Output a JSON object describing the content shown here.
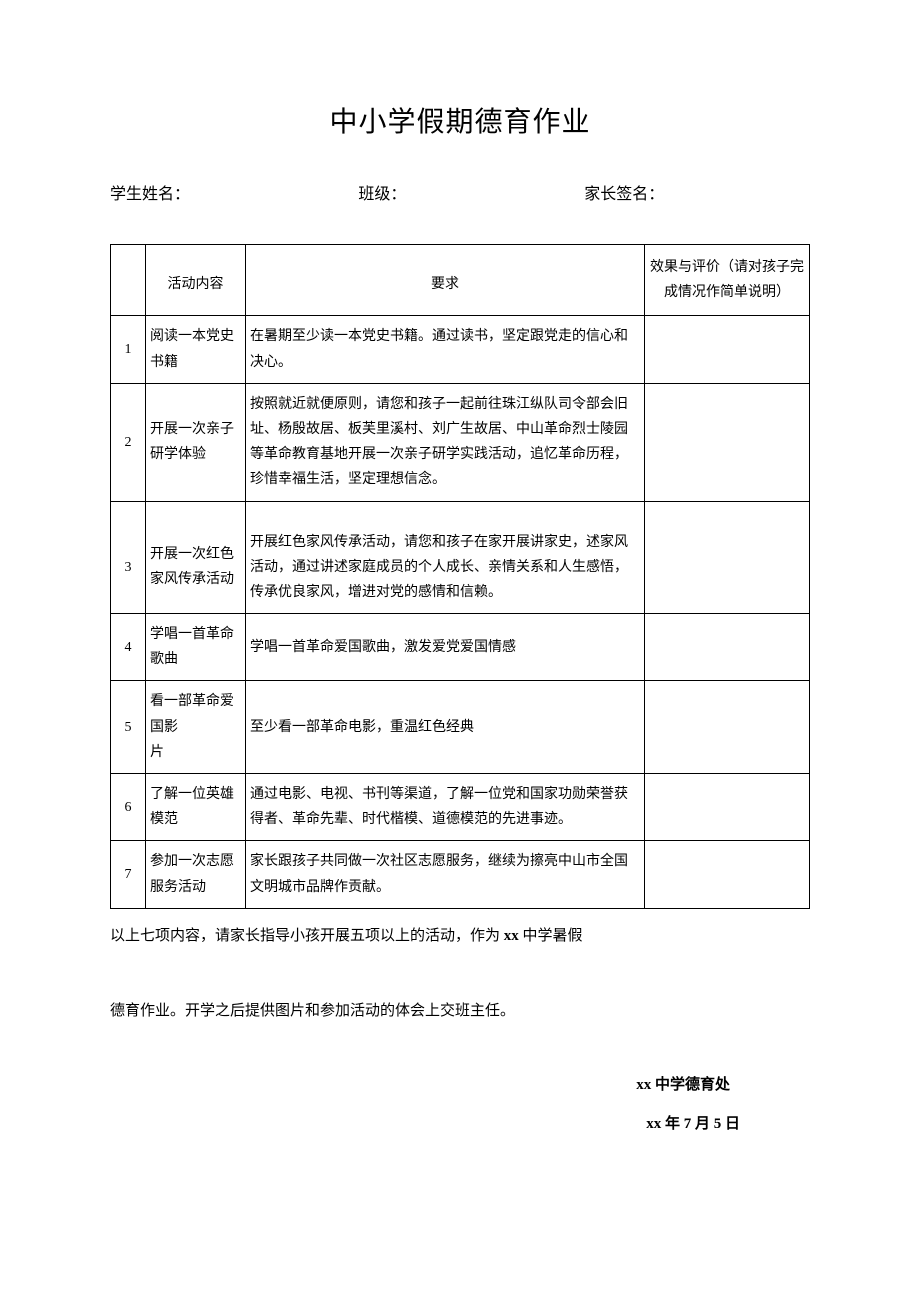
{
  "title": "中小学假期德育作业",
  "info": {
    "student_name_label": "学生姓名：",
    "class_label": "班级：",
    "parent_sign_label": "家长签名："
  },
  "table": {
    "headers": {
      "num": "",
      "activity": "活动内容",
      "requirement": "要求",
      "evaluation": "效果与评价（请对孩子完成情况作简单说明）"
    },
    "rows": [
      {
        "num": "1",
        "activity": "阅读一本党史书籍",
        "requirement": "在暑期至少读一本党史书籍。通过读书，坚定跟党走的信心和决心。",
        "evaluation": ""
      },
      {
        "num": "2",
        "activity": "开展一次亲子研学体验",
        "requirement": "按照就近就便原则，请您和孩子一起前往珠江纵队司令部会旧址、杨殷故居、板芙里溪村、刘广生故居、中山革命烈士陵园等革命教育基地开展一次亲子研学实践活动，追忆革命历程，珍惜幸福生活，坚定理想信念。",
        "evaluation": ""
      },
      {
        "num": "3",
        "activity": "开展一次红色家风传承活动",
        "requirement": "开展红色家风传承活动，请您和孩子在家开展讲家史，述家风活动，通过讲述家庭成员的个人成长、亲情关系和人生感悟，传承优良家风，增进对党的感情和信赖。",
        "evaluation": ""
      },
      {
        "num": "4",
        "activity": "学唱一首革命歌曲",
        "requirement": "学唱一首革命爱国歌曲，激发爱党爱国情感",
        "evaluation": ""
      },
      {
        "num": "5",
        "activity": "看一部革命爱国影\n片",
        "requirement": "至少看一部革命电影，重温红色经典",
        "evaluation": ""
      },
      {
        "num": "6",
        "activity": "了解一位英雄模范",
        "requirement": "通过电影、电视、书刊等渠道，了解一位党和国家功勋荣誉获得者、革命先辈、时代楷模、道德模范的先进事迹。",
        "evaluation": ""
      },
      {
        "num": "7",
        "activity": "参加一次志愿服务活动",
        "requirement": "家长跟孩子共同做一次社区志愿服务，继续为擦亮中山市全国文明城市品牌作贡献。",
        "evaluation": ""
      }
    ]
  },
  "footer": {
    "note1_pre": "以上七项内容，请家长指导小孩开展五项以上的活动，作为 ",
    "note1_x": "xx",
    "note1_post": " 中学暑假",
    "note2": "德育作业。开学之后提供图片和参加活动的体会上交班主任。",
    "signature_x": "xx",
    "signature_post": " 中学德育处",
    "date_x": "xx",
    "date_mid": " 年 ",
    "date_month": "7",
    "date_mid2": " 月 ",
    "date_day": "5",
    "date_post": " 日"
  }
}
